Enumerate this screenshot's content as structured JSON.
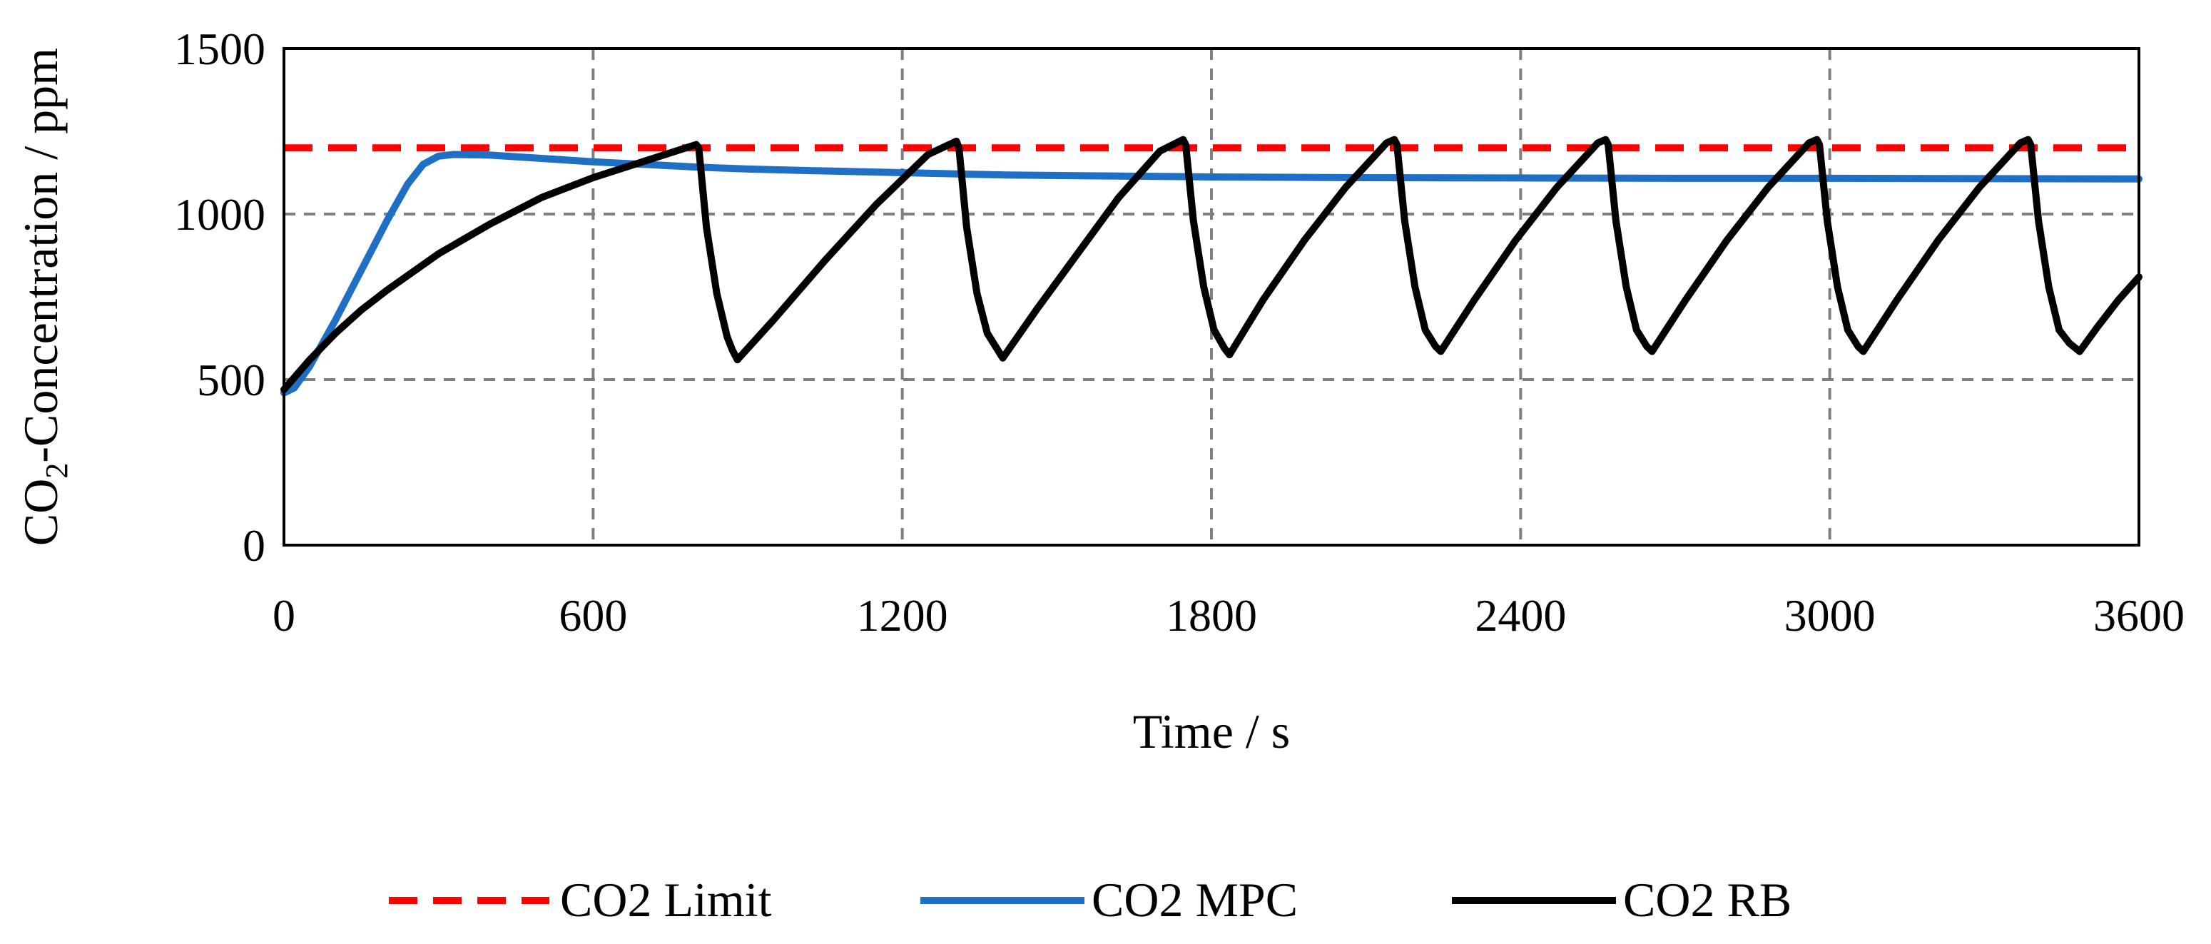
{
  "chart_data": {
    "type": "line",
    "title": "",
    "xlabel": "Time / s",
    "ylabel_main": "CO",
    "ylabel_sub": "2",
    "ylabel_rest": "-Concentration / ppm",
    "xlim": [
      0,
      3600
    ],
    "ylim": [
      0,
      1500
    ],
    "xticks": [
      0,
      600,
      1200,
      1800,
      2400,
      3000,
      3600
    ],
    "yticks": [
      0,
      500,
      1000,
      1500
    ],
    "xtick_labels": [
      "0",
      "600",
      "1200",
      "1800",
      "2400",
      "3000",
      "3600"
    ],
    "ytick_labels": [
      "0",
      "500",
      "1000",
      "1500"
    ],
    "grid": true,
    "legend_position": "bottom",
    "series": [
      {
        "name": "CO2 Limit",
        "color": "#ff0000",
        "style": "dashed",
        "x": [
          0,
          3600
        ],
        "y": [
          1200,
          1200
        ]
      },
      {
        "name": "CO2 MPC",
        "color": "#1f6fc5",
        "style": "solid",
        "x": [
          0,
          20,
          50,
          100,
          150,
          200,
          240,
          270,
          300,
          330,
          400,
          500,
          600,
          700,
          800,
          900,
          1000,
          1200,
          1400,
          1600,
          1800,
          2100,
          2400,
          2700,
          3000,
          3300,
          3600
        ],
        "y": [
          460,
          475,
          540,
          680,
          830,
          980,
          1090,
          1150,
          1175,
          1180,
          1178,
          1168,
          1158,
          1150,
          1142,
          1136,
          1132,
          1125,
          1118,
          1115,
          1112,
          1110,
          1109,
          1108,
          1108,
          1107,
          1106
        ]
      },
      {
        "name": "CO2 RB",
        "color": "#000000",
        "style": "solid",
        "x": [
          0,
          50,
          100,
          150,
          200,
          300,
          400,
          500,
          600,
          700,
          800,
          805,
          820,
          840,
          860,
          870,
          880,
          950,
          1050,
          1150,
          1250,
          1305,
          1310,
          1325,
          1345,
          1365,
          1385,
          1395,
          1460,
          1540,
          1620,
          1700,
          1745,
          1750,
          1765,
          1785,
          1805,
          1825,
          1835,
          1900,
          1980,
          2060,
          2140,
          2155,
          2160,
          2175,
          2195,
          2215,
          2235,
          2245,
          2310,
          2390,
          2470,
          2550,
          2565,
          2570,
          2585,
          2605,
          2625,
          2645,
          2655,
          2720,
          2800,
          2880,
          2960,
          2975,
          2980,
          2995,
          3015,
          3035,
          3055,
          3065,
          3130,
          3210,
          3290,
          3370,
          3385,
          3390,
          3405,
          3425,
          3445,
          3465,
          3485,
          3520,
          3560,
          3600
        ],
        "y": [
          470,
          560,
          640,
          710,
          770,
          880,
          970,
          1050,
          1110,
          1160,
          1210,
          1200,
          960,
          760,
          630,
          590,
          560,
          680,
          860,
          1030,
          1180,
          1220,
          1200,
          960,
          760,
          640,
          590,
          565,
          710,
          880,
          1050,
          1190,
          1225,
          1210,
          980,
          780,
          650,
          595,
          575,
          740,
          920,
          1080,
          1215,
          1225,
          1210,
          980,
          780,
          650,
          600,
          585,
          740,
          920,
          1080,
          1215,
          1225,
          1210,
          980,
          780,
          650,
          600,
          585,
          740,
          920,
          1080,
          1215,
          1225,
          1210,
          980,
          780,
          650,
          600,
          585,
          740,
          920,
          1080,
          1215,
          1225,
          1210,
          980,
          780,
          650,
          610,
          585,
          660,
          740,
          810
        ]
      }
    ]
  }
}
